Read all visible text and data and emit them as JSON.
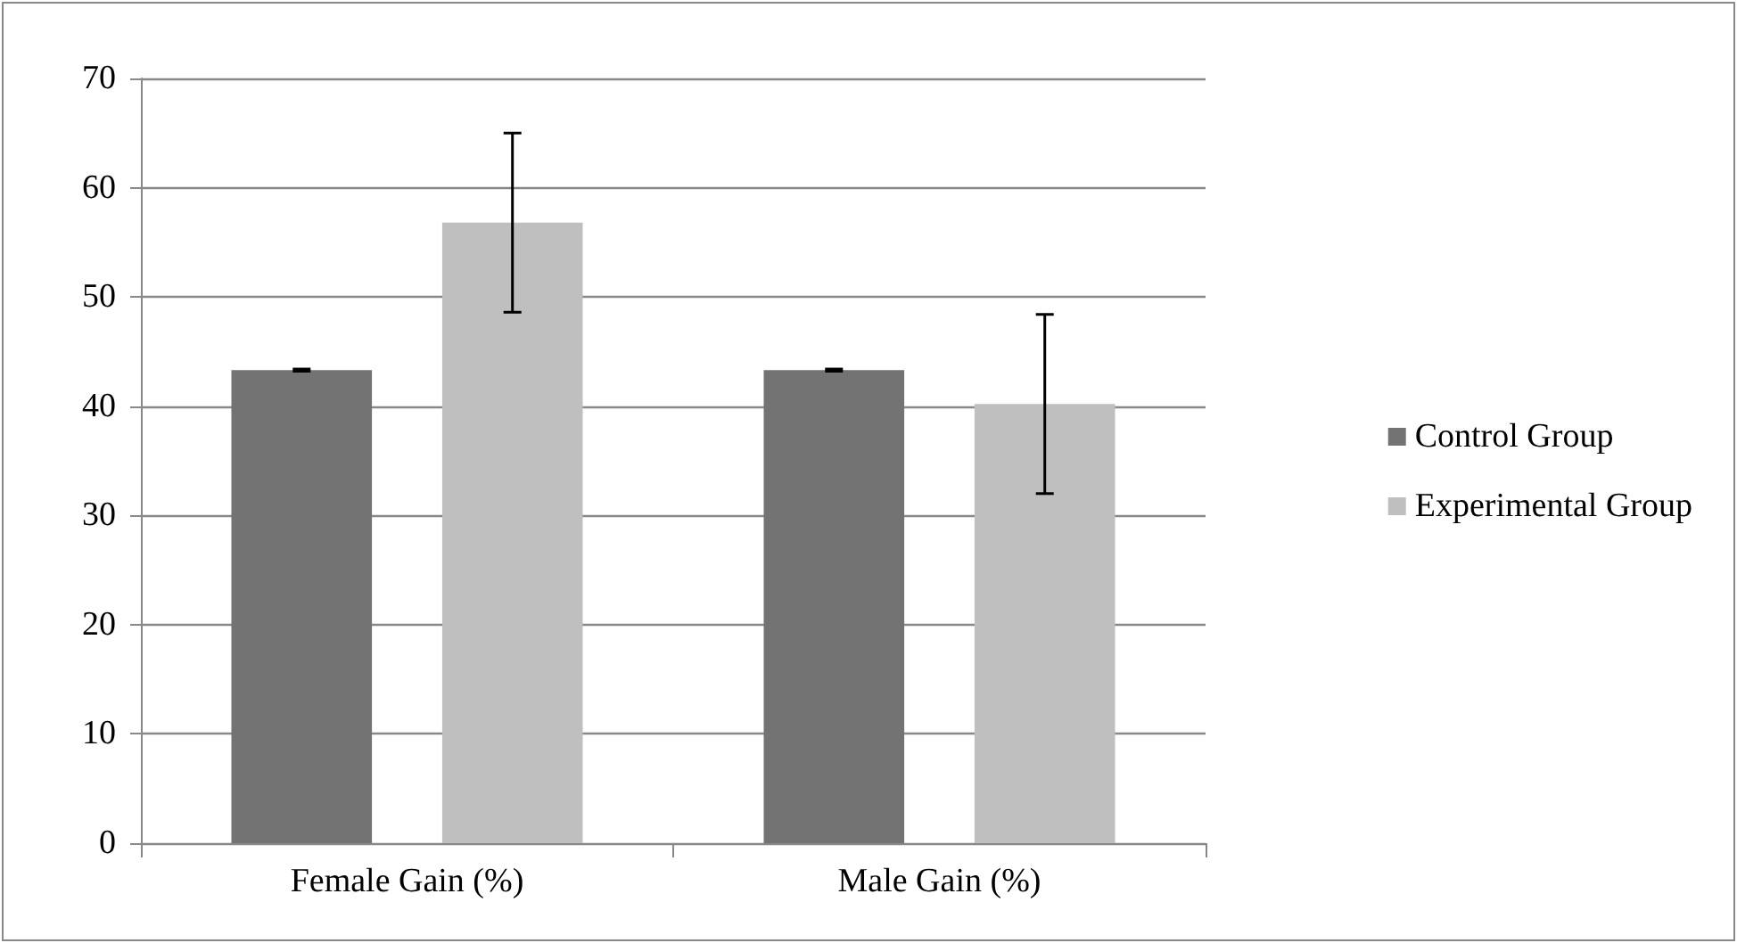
{
  "chart_data": {
    "type": "bar",
    "categories": [
      "Female Gain (%)",
      "Male Gain (%)"
    ],
    "series": [
      {
        "name": "Control Group",
        "color": "#737373",
        "values": [
          43.3,
          43.3
        ],
        "errors": [
          0.1,
          0.1
        ]
      },
      {
        "name": "Experimental Group",
        "color": "#bfbfbf",
        "values": [
          56.8,
          40.2
        ],
        "errors": [
          8.2,
          8.2
        ]
      }
    ],
    "ylim": [
      0,
      70
    ],
    "yticks": [
      0,
      10,
      20,
      30,
      40,
      50,
      60,
      70
    ],
    "grid": "y",
    "legend": "right"
  }
}
